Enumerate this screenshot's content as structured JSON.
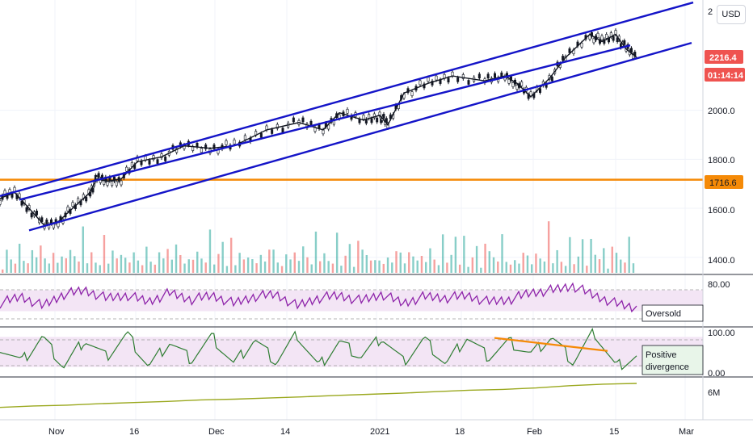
{
  "currency": "USD",
  "colors": {
    "channel": "#1414c8",
    "level": "#f58a07",
    "up": "#26a69a",
    "down": "#ef5350",
    "rsi": "#8e24aa",
    "stoch": "#2e7d32",
    "obv": "#9aa81e",
    "band": "#f3e5f5",
    "priceTag": "#ef5350"
  },
  "main_pane": {
    "price_ticks": [
      "1400.0",
      "1600.0",
      "1800.0",
      "2000.0",
      "2"
    ],
    "current_price": "2216.4",
    "countdown": "01:14:14",
    "level_label": "1716.6"
  },
  "rsi_pane": {
    "ticks": [
      "80.00"
    ],
    "annotation": "Oversold"
  },
  "stoch_pane": {
    "ticks": [
      "100.00",
      "0.00"
    ],
    "annotation_line1": "Positive",
    "annotation_line2": "divergence"
  },
  "obv_pane": {
    "ticks": [
      "6M"
    ]
  },
  "x_axis": [
    "Nov",
    "16",
    "Dec",
    "14",
    "2021",
    "18",
    "Feb",
    "15",
    "Mar"
  ],
  "chart_data": {
    "type": "line",
    "x_ticks": [
      "Nov",
      "16",
      "Dec",
      "14",
      "2021",
      "18",
      "Feb",
      "15",
      "Mar"
    ],
    "price_axis_ticks": [
      1400,
      1600,
      1800,
      2000
    ],
    "price_ylim": [
      1330,
      2450
    ],
    "current_price": 2216.4,
    "horizontal_level": 1716.6,
    "price_series": [
      {
        "x": 0,
        "y": 1640
      },
      {
        "x": 18,
        "y": 1665
      },
      {
        "x": 36,
        "y": 1600
      },
      {
        "x": 55,
        "y": 1530
      },
      {
        "x": 72,
        "y": 1545
      },
      {
        "x": 90,
        "y": 1600
      },
      {
        "x": 110,
        "y": 1660
      },
      {
        "x": 120,
        "y": 1720
      },
      {
        "x": 133,
        "y": 1710
      },
      {
        "x": 150,
        "y": 1720
      },
      {
        "x": 170,
        "y": 1790
      },
      {
        "x": 200,
        "y": 1810
      },
      {
        "x": 228,
        "y": 1855
      },
      {
        "x": 260,
        "y": 1845
      },
      {
        "x": 290,
        "y": 1855
      },
      {
        "x": 330,
        "y": 1920
      },
      {
        "x": 370,
        "y": 1950
      },
      {
        "x": 400,
        "y": 1920
      },
      {
        "x": 420,
        "y": 1990
      },
      {
        "x": 450,
        "y": 1960
      },
      {
        "x": 470,
        "y": 1980
      },
      {
        "x": 480,
        "y": 1940
      },
      {
        "x": 500,
        "y": 2070
      },
      {
        "x": 530,
        "y": 2110
      },
      {
        "x": 560,
        "y": 2140
      },
      {
        "x": 600,
        "y": 2120
      },
      {
        "x": 625,
        "y": 2140
      },
      {
        "x": 640,
        "y": 2110
      },
      {
        "x": 657,
        "y": 2055
      },
      {
        "x": 680,
        "y": 2130
      },
      {
        "x": 700,
        "y": 2215
      },
      {
        "x": 730,
        "y": 2310
      },
      {
        "x": 745,
        "y": 2280
      },
      {
        "x": 762,
        "y": 2310
      },
      {
        "x": 775,
        "y": 2250
      },
      {
        "x": 788,
        "y": 2216
      }
    ],
    "channel_lines": [
      {
        "name": "",
        "from": [
          0,
          1650
        ],
        "to": [
          858,
          2440
        ]
      },
      {
        "name": "",
        "from": [
          24,
          1635
        ],
        "to": [
          780,
          2265
        ]
      },
      {
        "name": "",
        "from": [
          36,
          1510
        ],
        "to": [
          856,
          2275
        ]
      }
    ],
    "volume_series": [
      40,
      150,
      60,
      90,
      170,
      50,
      80,
      120,
      60,
      200,
      70,
      110,
      130,
      45,
      160,
      85,
      95,
      140,
      60,
      180,
      70,
      100,
      120,
      50,
      170,
      90,
      130,
      60,
      150,
      80
    ],
    "rsi_ylim": [
      0,
      100
    ],
    "rsi_series": [
      45,
      58,
      40,
      62,
      70,
      55,
      60,
      48,
      65,
      52,
      60,
      45,
      58,
      62,
      40,
      55,
      60,
      50,
      62,
      45,
      58,
      55,
      60,
      48,
      52,
      65,
      70,
      78,
      60,
      45,
      35
    ],
    "rsi_band": [
      30,
      70
    ],
    "stoch_ylim": [
      0,
      100
    ],
    "stoch_series": [
      60,
      30,
      80,
      20,
      75,
      40,
      85,
      20,
      70,
      35,
      80,
      25,
      75,
      30,
      85,
      20,
      70,
      40,
      80,
      30,
      75,
      25,
      80,
      40,
      70,
      45,
      80,
      30,
      90,
      20,
      40
    ],
    "stoch_band": [
      20,
      80
    ],
    "divergence_line": {
      "from": [
        612,
        78
      ],
      "to": [
        752,
        52
      ]
    },
    "obv_series": [
      20,
      24,
      26,
      30,
      33,
      36,
      40,
      42,
      45,
      48,
      52,
      55,
      58,
      62,
      66,
      68,
      72,
      78,
      82,
      84
    ]
  }
}
